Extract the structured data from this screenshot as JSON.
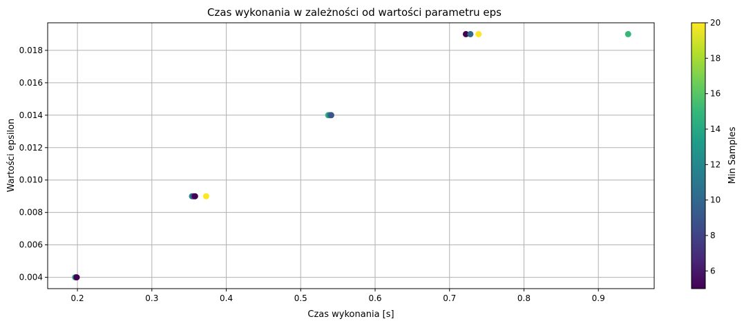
{
  "chart_data": {
    "type": "scatter",
    "title": "Czas wykonania w zależności od wartości parametru eps",
    "xlabel": "Czas wykonania [s]",
    "ylabel": "Wartości epsilon",
    "xlim": [
      0.16,
      0.975
    ],
    "ylim": [
      0.0033,
      0.0197
    ],
    "xticks": [
      0.2,
      0.3,
      0.4,
      0.5,
      0.6,
      0.7,
      0.8,
      0.9
    ],
    "xtick_labels": [
      "0.2",
      "0.3",
      "0.4",
      "0.5",
      "0.6",
      "0.7",
      "0.8",
      "0.9"
    ],
    "yticks": [
      0.004,
      0.006,
      0.008,
      0.01,
      0.012,
      0.014,
      0.016,
      0.018
    ],
    "ytick_labels": [
      "0.004",
      "0.006",
      "0.008",
      "0.010",
      "0.012",
      "0.014",
      "0.016",
      "0.018"
    ],
    "grid": true,
    "colorbar": {
      "label": "Min Samples",
      "range": [
        5,
        20
      ],
      "colormap": "viridis",
      "ticks": [
        6,
        8,
        10,
        12,
        14,
        16,
        18,
        20
      ],
      "tick_labels": [
        "6",
        "8",
        "10",
        "12",
        "14",
        "16",
        "18",
        "20"
      ]
    },
    "points": [
      {
        "x": 0.197,
        "y": 0.004,
        "c": 20
      },
      {
        "x": 0.197,
        "y": 0.004,
        "c": 15
      },
      {
        "x": 0.198,
        "y": 0.004,
        "c": 10
      },
      {
        "x": 0.199,
        "y": 0.004,
        "c": 5
      },
      {
        "x": 0.354,
        "y": 0.009,
        "c": 12
      },
      {
        "x": 0.356,
        "y": 0.009,
        "c": 8
      },
      {
        "x": 0.358,
        "y": 0.009,
        "c": 5
      },
      {
        "x": 0.373,
        "y": 0.009,
        "c": 20
      },
      {
        "x": 0.537,
        "y": 0.014,
        "c": 15
      },
      {
        "x": 0.539,
        "y": 0.014,
        "c": 12
      },
      {
        "x": 0.541,
        "y": 0.014,
        "c": 9
      },
      {
        "x": 0.722,
        "y": 0.019,
        "c": 5
      },
      {
        "x": 0.728,
        "y": 0.019,
        "c": 10
      },
      {
        "x": 0.739,
        "y": 0.019,
        "c": 20
      },
      {
        "x": 0.94,
        "y": 0.019,
        "c": 15
      }
    ]
  }
}
